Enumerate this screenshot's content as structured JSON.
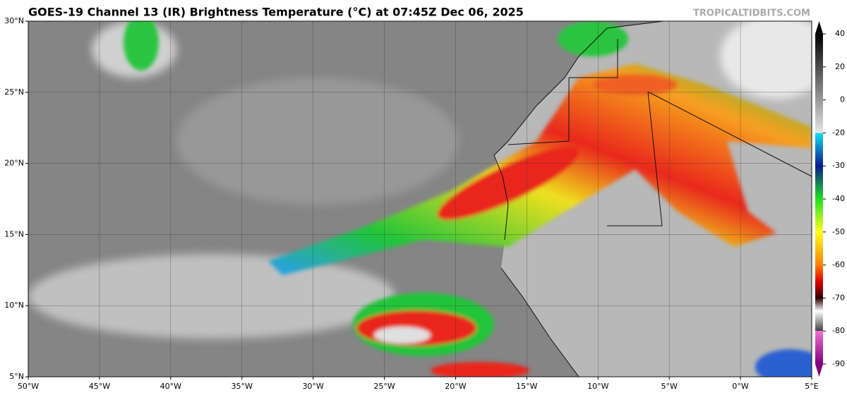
{
  "header": {
    "title": "GOES-19 Channel 13 (IR) Brightness Temperature (°C) at 07:45Z Dec 06, 2025",
    "source": "TROPICALTIDBITS.COM"
  },
  "map": {
    "lonlim": [
      -50,
      5
    ],
    "latlim": [
      5,
      30
    ],
    "lon_ticks": [
      {
        "value": -50,
        "label": "50°W"
      },
      {
        "value": -45,
        "label": "45°W"
      },
      {
        "value": -40,
        "label": "40°W"
      },
      {
        "value": -35,
        "label": "35°W"
      },
      {
        "value": -30,
        "label": "30°W"
      },
      {
        "value": -25,
        "label": "25°W"
      },
      {
        "value": -20,
        "label": "20°W"
      },
      {
        "value": -15,
        "label": "15°W"
      },
      {
        "value": -10,
        "label": "10°W"
      },
      {
        "value": -5,
        "label": "5°W"
      },
      {
        "value": 0,
        "label": "0°W"
      },
      {
        "value": 5,
        "label": "5°E"
      }
    ],
    "lat_ticks": [
      {
        "value": 30,
        "label": "30°N"
      },
      {
        "value": 25,
        "label": "25°N"
      },
      {
        "value": 20,
        "label": "20°N"
      },
      {
        "value": 15,
        "label": "15°N"
      },
      {
        "value": 10,
        "label": "10°N"
      },
      {
        "value": 5,
        "label": "5°N"
      }
    ]
  },
  "colorbar": {
    "lim": [
      -90,
      40
    ],
    "ticks": [
      40,
      20,
      0,
      -20,
      -30,
      -40,
      -50,
      -60,
      -70,
      -80,
      -90
    ]
  }
}
